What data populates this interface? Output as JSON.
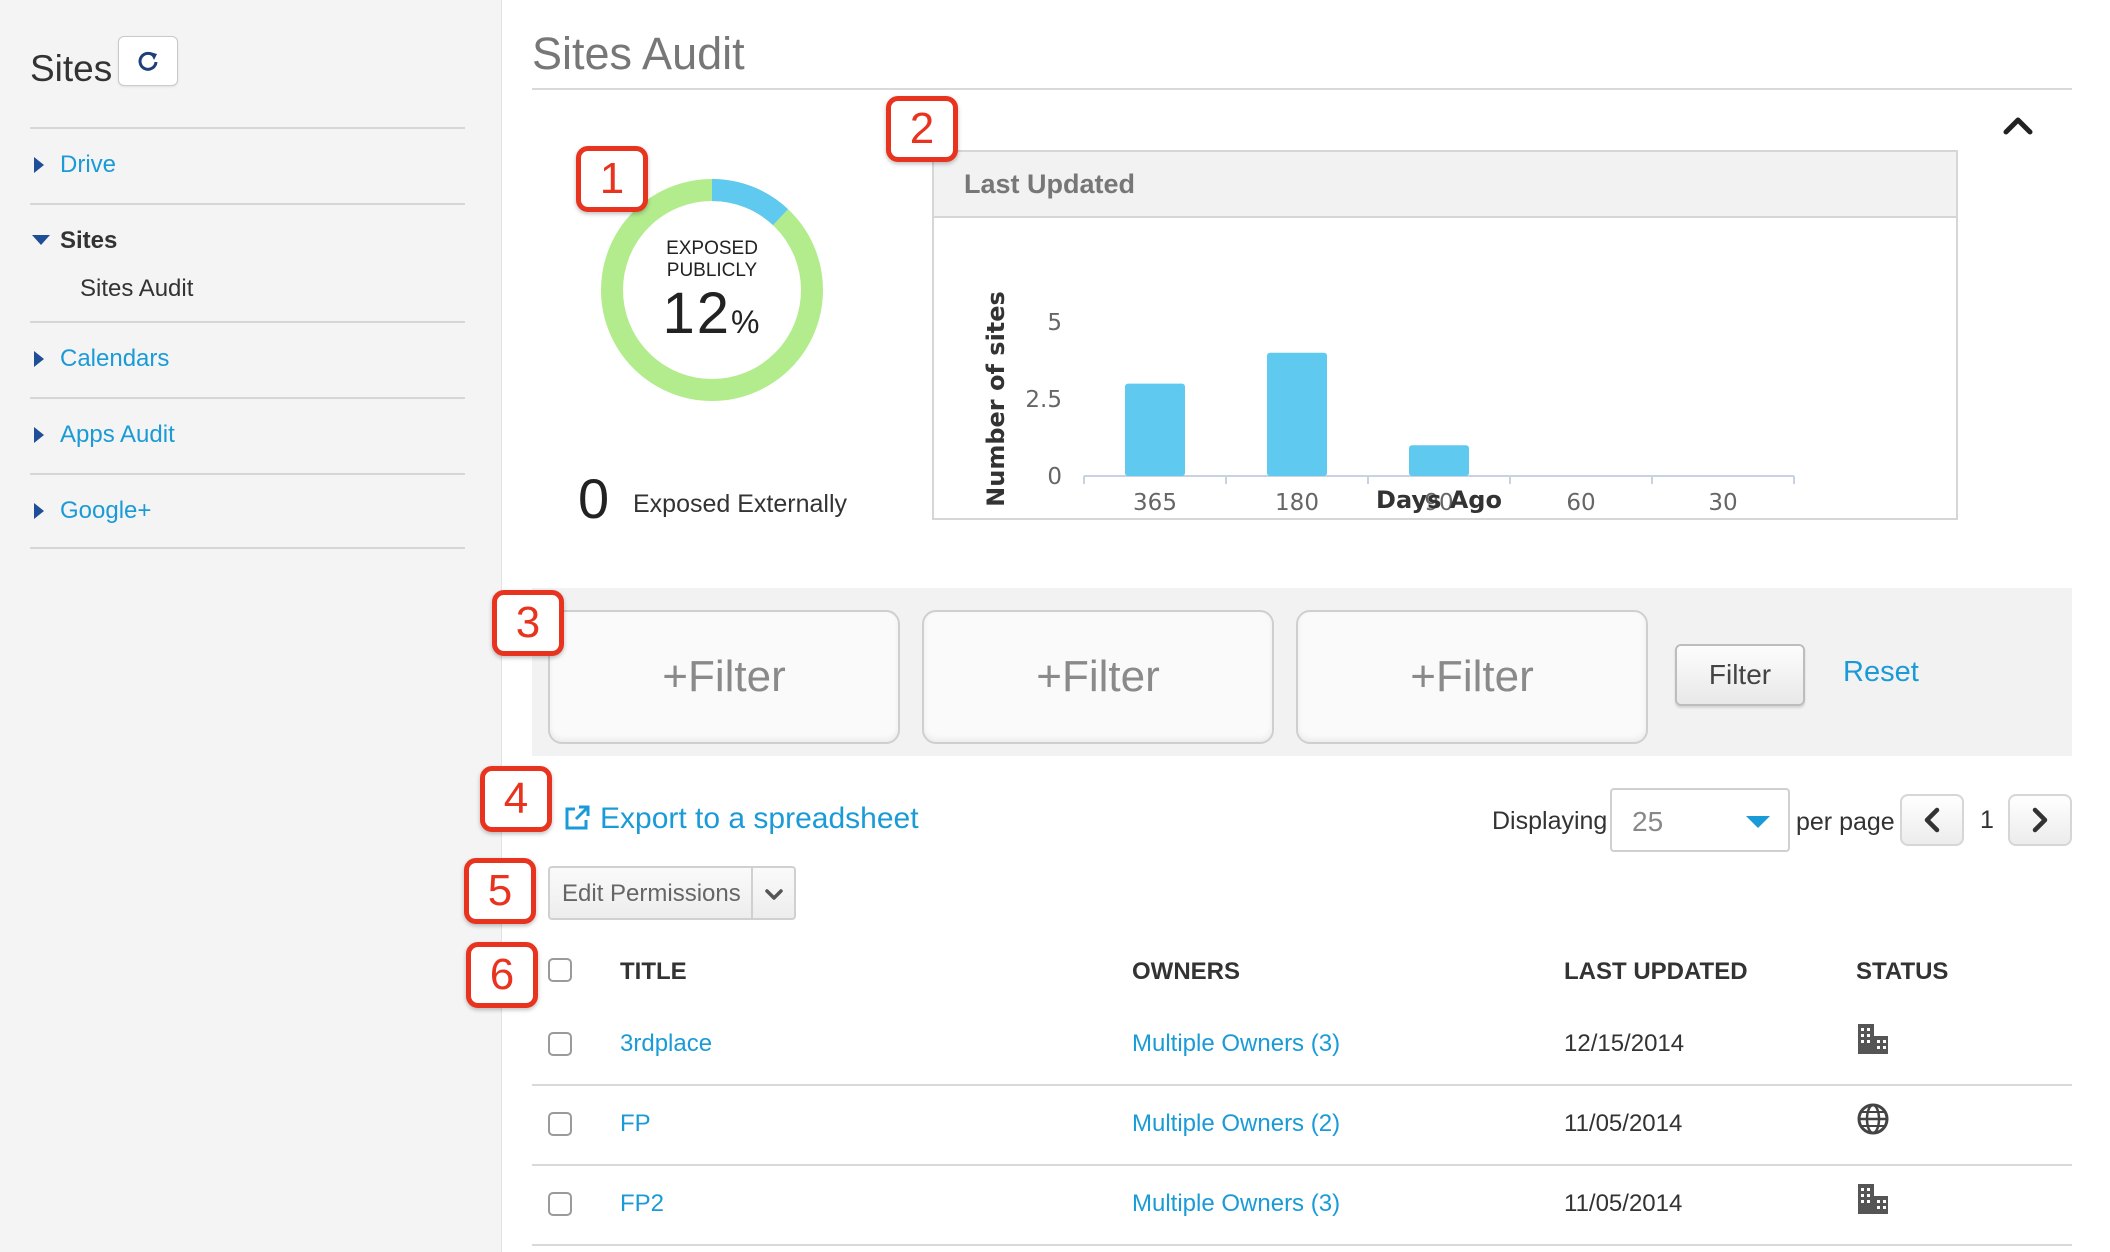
{
  "sidebar": {
    "title": "Sites",
    "items": [
      {
        "label": "Drive",
        "expanded": false,
        "active": false
      },
      {
        "label": "Sites",
        "expanded": true,
        "active": true,
        "children": [
          "Sites Audit"
        ]
      },
      {
        "label": "Calendars",
        "expanded": false,
        "active": false
      },
      {
        "label": "Apps Audit",
        "expanded": false,
        "active": false
      },
      {
        "label": "Google+",
        "expanded": false,
        "active": false
      }
    ],
    "refresh_icon": "refresh-icon"
  },
  "main": {
    "title": "Sites Audit",
    "collapse_icon": "chevron-up-icon"
  },
  "callouts": [
    "1",
    "2",
    "3",
    "4",
    "5",
    "6"
  ],
  "exposure": {
    "label_line1": "EXPOSED",
    "label_line2": "PUBLICLY",
    "value": "12",
    "unit": "%",
    "fraction": 0.12,
    "external_count": "0",
    "external_label": "Exposed Externally",
    "colors": {
      "ring": "#b3ec8c",
      "highlight": "#5fc9ef"
    }
  },
  "chart_data": {
    "type": "bar",
    "title": "Last Updated",
    "xlabel": "Days Ago",
    "ylabel": "Number of sites",
    "categories": [
      "365",
      "180",
      "90",
      "60",
      "30"
    ],
    "values": [
      3,
      4,
      1,
      0,
      0
    ],
    "yticks": [
      "0",
      "2.5",
      "5"
    ],
    "ylim": [
      0,
      5
    ],
    "grid": false,
    "color": "#5fc9ef"
  },
  "filters": {
    "boxes": [
      "+Filter",
      "+Filter",
      "+Filter"
    ],
    "filter_button": "Filter",
    "reset_link": "Reset"
  },
  "toolbar": {
    "export_label": "Export to a spreadsheet",
    "export_icon": "external-link-icon",
    "displaying_label": "Displaying",
    "per_page_value": "25",
    "per_page_label": "per page",
    "page_number": "1",
    "prev_icon": "chevron-left-icon",
    "next_icon": "chevron-right-icon",
    "edit_permissions_label": "Edit Permissions",
    "edit_permissions_icon": "chevron-down-icon"
  },
  "table": {
    "columns": [
      "TITLE",
      "OWNERS",
      "LAST UPDATED",
      "STATUS"
    ],
    "rows": [
      {
        "title": "3rdplace",
        "owners": "Multiple Owners (3)",
        "last_updated": "12/15/2014",
        "status_icon": "building-icon"
      },
      {
        "title": "FP",
        "owners": "Multiple Owners (2)",
        "last_updated": "11/05/2014",
        "status_icon": "globe-icon"
      },
      {
        "title": "FP2",
        "owners": "Multiple Owners (3)",
        "last_updated": "11/05/2014",
        "status_icon": "building-icon"
      }
    ]
  }
}
